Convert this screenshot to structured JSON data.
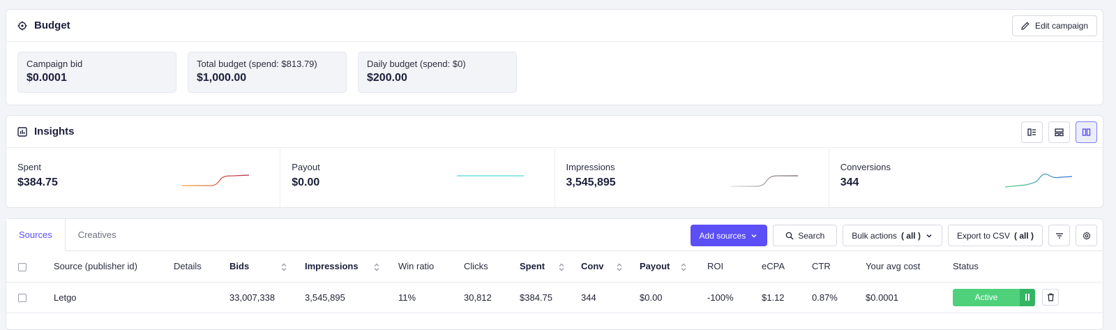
{
  "budget": {
    "title": "Budget",
    "edit_label": "Edit campaign",
    "metrics": [
      {
        "label": "Campaign bid",
        "value": "$0.0001"
      },
      {
        "label": "Total budget (spend: $813.79)",
        "value": "$1,000.00"
      },
      {
        "label": "Daily budget (spend: $0)",
        "value": "$200.00"
      }
    ]
  },
  "insights": {
    "title": "Insights",
    "stats": [
      {
        "label": "Spent",
        "value": "$384.75",
        "spark_colors": [
          "#f2a533",
          "#b8234a"
        ]
      },
      {
        "label": "Payout",
        "value": "$0.00",
        "spark_colors": [
          "#4fd6d6",
          "#4fd6d6"
        ]
      },
      {
        "label": "Impressions",
        "value": "3,545,895",
        "spark_colors": [
          "#d6d6d6",
          "#7b6a6a"
        ]
      },
      {
        "label": "Conversions",
        "value": "344",
        "spark_colors": [
          "#4fd17c",
          "#2f6ed6"
        ]
      }
    ]
  },
  "sources": {
    "tabs": [
      "Sources",
      "Creatives"
    ],
    "toolbar": {
      "add_label": "Add sources",
      "search_label": "Search",
      "bulk_label": "Bulk actions",
      "bulk_suffix": "( all )",
      "export_label": "Export to CSV",
      "export_suffix": "( all )"
    },
    "columns": [
      "Source (publisher id)",
      "Details",
      "Bids",
      "Impressions",
      "Win ratio",
      "Clicks",
      "Spent",
      "Conv",
      "Payout",
      "ROI",
      "eCPA",
      "CTR",
      "Your avg cost",
      "Status"
    ],
    "rows": [
      {
        "source": "Letgo",
        "details": "",
        "bids": "33,007,338",
        "impressions": "3,545,895",
        "win_ratio": "11%",
        "clicks": "30,812",
        "spent": "$384.75",
        "conv": "344",
        "payout": "$0.00",
        "roi": "-100%",
        "ecpa": "$1.12",
        "ctr": "0.87%",
        "avg_cost": "$0.0001",
        "status": "Active"
      }
    ]
  },
  "colors": {
    "accent": "#5b4ff5",
    "active_status": "#4fd17c"
  }
}
